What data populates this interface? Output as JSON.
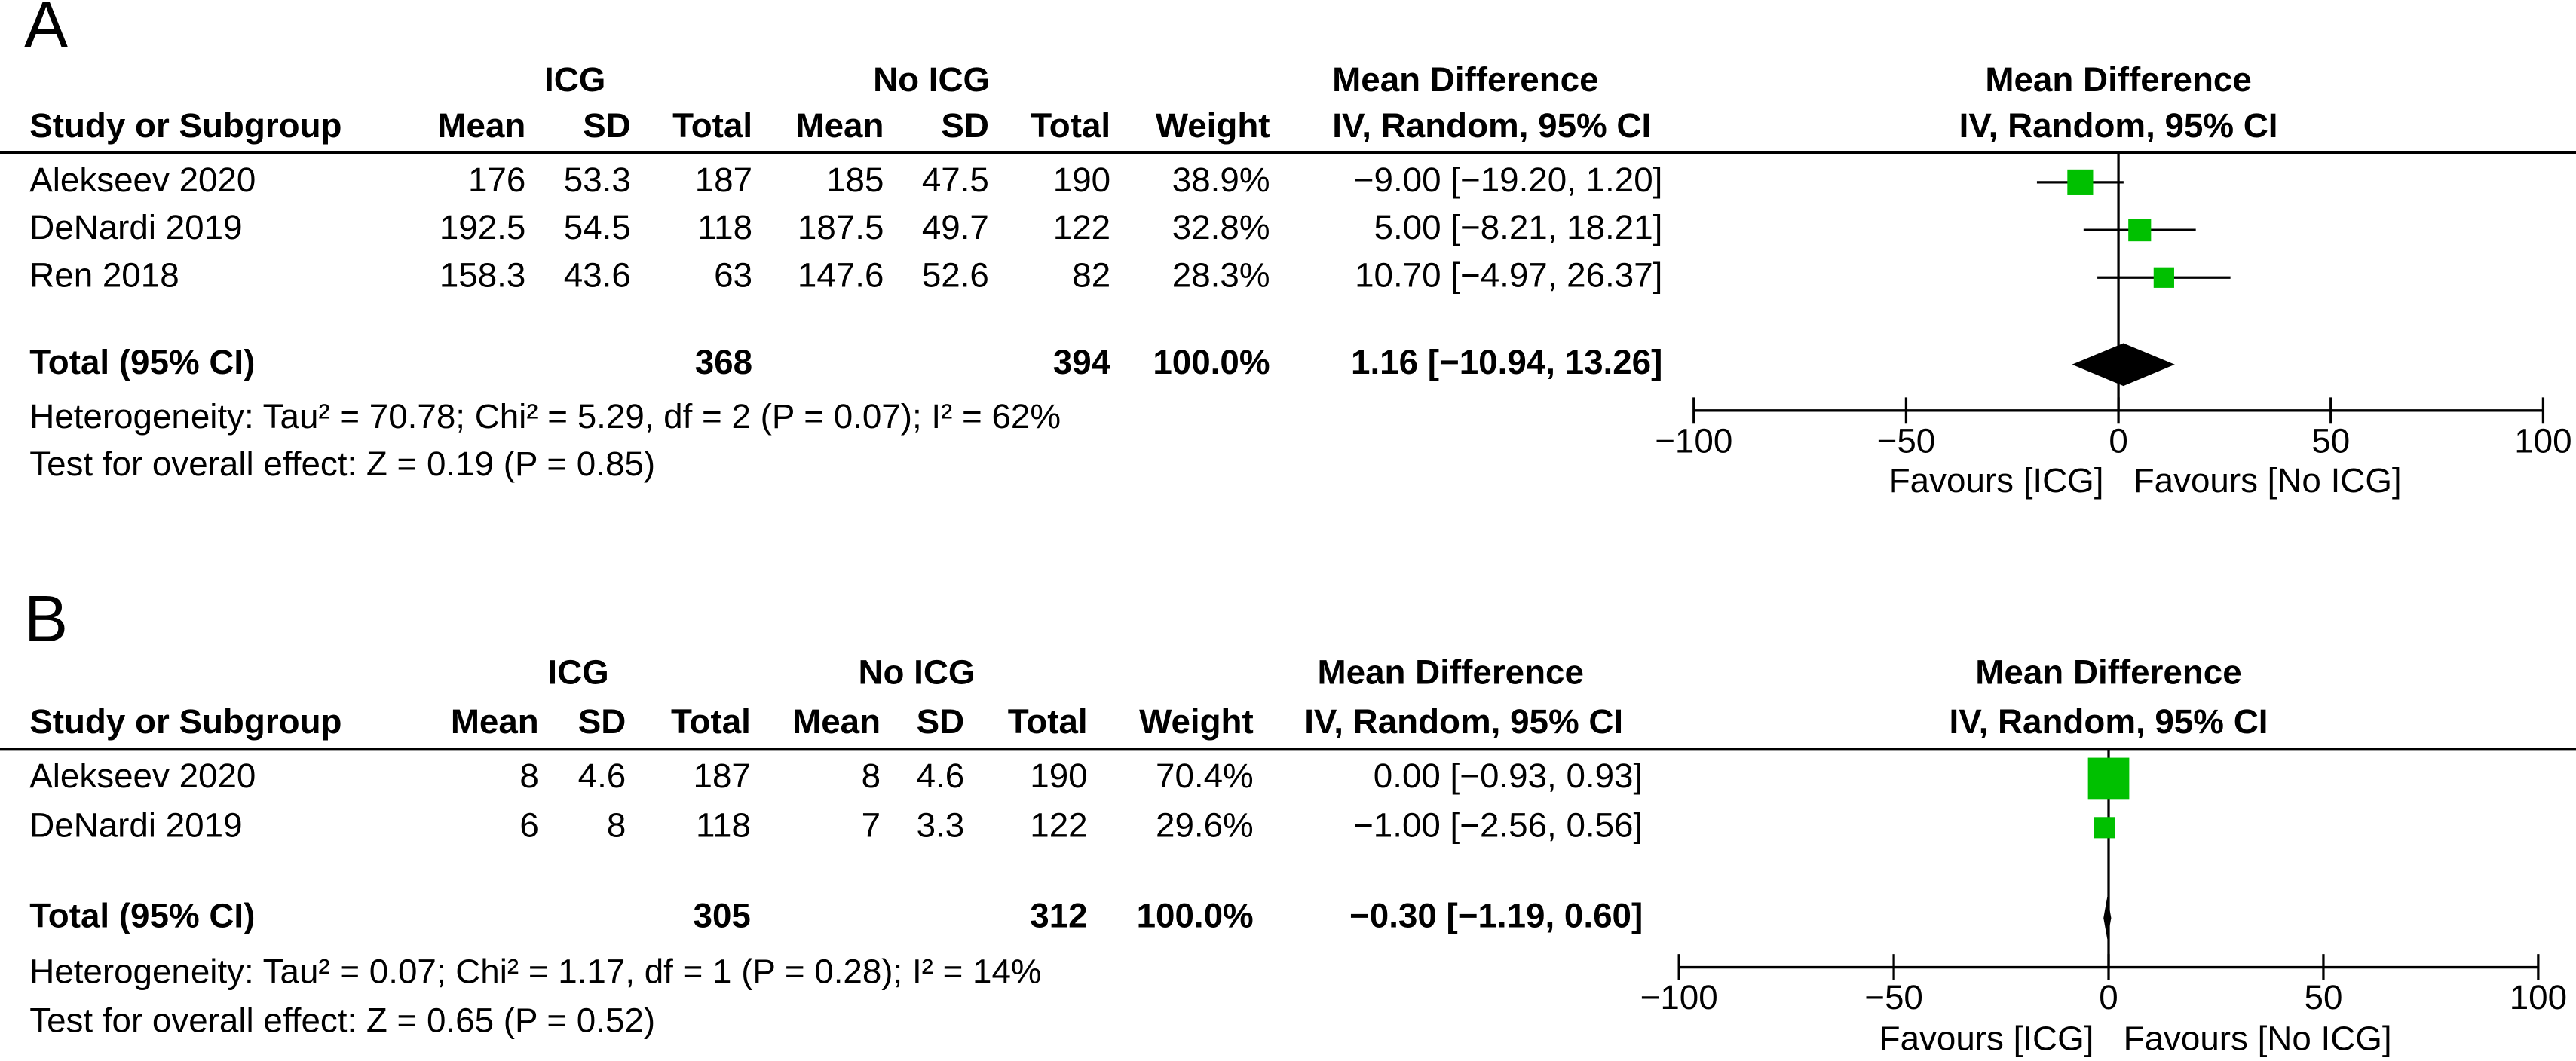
{
  "chart_data": [
    {
      "type": "forest",
      "title": "A",
      "group_labels": [
        "ICG",
        "No ICG"
      ],
      "effect_header": "Mean Difference",
      "effect_subheader": "IV, Random, 95% CI",
      "columns": [
        "Study or Subgroup",
        "Mean",
        "SD",
        "Total",
        "Mean",
        "SD",
        "Total",
        "Weight"
      ],
      "categories": [
        "Alekseev 2020",
        "DeNardi 2019",
        "Ren 2018"
      ],
      "table": [
        [
          176,
          53.3,
          187,
          185,
          47.5,
          190
        ],
        [
          192.5,
          54.5,
          118,
          187.5,
          49.7,
          122
        ],
        [
          158.3,
          43.6,
          63,
          147.6,
          52.6,
          82
        ]
      ],
      "weights": [
        38.9,
        32.8,
        28.3
      ],
      "weight_labels": [
        "38.9%",
        "32.8%",
        "28.3%"
      ],
      "values": [
        -9.0,
        5.0,
        10.7
      ],
      "ci_low": [
        -19.2,
        -8.21,
        -4.97
      ],
      "ci_high": [
        1.2,
        18.21,
        26.37
      ],
      "value_labels": [
        "−9.00 [−19.20, 1.20]",
        "5.00 [−8.21, 18.21]",
        "10.70 [−4.97, 26.37]"
      ],
      "total": {
        "label": "Total (95% CI)",
        "n": [
          368,
          394
        ],
        "weight_label": "100.0%",
        "value": 1.16,
        "ci_low": -10.94,
        "ci_high": 13.26,
        "value_label": "1.16 [−10.94, 13.26]"
      },
      "heterogeneity": "Heterogeneity: Tau² = 70.78; Chi² = 5.29, df = 2 (P = 0.07); I² = 62%",
      "overall_effect": "Test for overall effect: Z = 0.19 (P = 0.85)",
      "plot_header": "Mean Difference",
      "plot_subheader": "IV, Random, 95% CI",
      "xlim": [
        -100,
        100
      ],
      "xticks": [
        {
          "value": -100,
          "label": "−100"
        },
        {
          "value": -50,
          "label": "−50"
        },
        0,
        50,
        100
      ],
      "favours": [
        "Favours [ICG]",
        "Favours [No ICG]"
      ],
      "color": "#00c000"
    },
    {
      "type": "forest",
      "title": "B",
      "group_labels": [
        "ICG",
        "No ICG"
      ],
      "effect_header": "Mean Difference",
      "effect_subheader": "IV, Random, 95% CI",
      "columns": [
        "Study or Subgroup",
        "Mean",
        "SD",
        "Total",
        "Mean",
        "SD",
        "Total",
        "Weight"
      ],
      "categories": [
        "Alekseev 2020",
        "DeNardi 2019"
      ],
      "table": [
        [
          8,
          4.6,
          187,
          8,
          4.6,
          190
        ],
        [
          6,
          8,
          118,
          7,
          3.3,
          122
        ]
      ],
      "weights": [
        70.4,
        29.6
      ],
      "weight_labels": [
        "70.4%",
        "29.6%"
      ],
      "values": [
        0.0,
        -1.0
      ],
      "ci_low": [
        -0.93,
        -2.56
      ],
      "ci_high": [
        0.93,
        0.56
      ],
      "value_labels": [
        "0.00 [−0.93, 0.93]",
        "−1.00 [−2.56, 0.56]"
      ],
      "total": {
        "label": "Total (95% CI)",
        "n": [
          305,
          312
        ],
        "weight_label": "100.0%",
        "value": -0.3,
        "ci_low": -1.19,
        "ci_high": 0.6,
        "value_label": "−0.30 [−1.19, 0.60]"
      },
      "heterogeneity": "Heterogeneity: Tau² = 0.07; Chi² = 1.17, df = 1 (P = 0.28); I² = 14%",
      "overall_effect": "Test for overall effect: Z = 0.65 (P = 0.52)",
      "plot_header": "Mean Difference",
      "plot_subheader": "IV, Random, 95% CI",
      "xlim": [
        -100,
        100
      ],
      "xticks": [
        {
          "value": -100,
          "label": "−100"
        },
        {
          "value": -50,
          "label": "−50"
        },
        0,
        50,
        100
      ],
      "favours": [
        "Favours [ICG]",
        "Favours [No ICG]"
      ],
      "color": "#00c000"
    }
  ]
}
